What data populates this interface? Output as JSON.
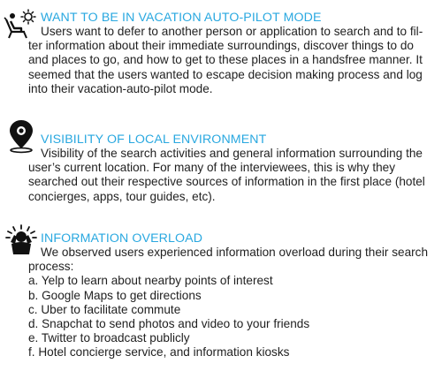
{
  "sections": [
    {
      "icon": "lounge-chair-sun-icon",
      "heading": "WANT TO BE IN VACATION AUTO-PILOT MODE",
      "lines": [
        "Users want to defer to another person or application to search and to fil-",
        "ter information about their immediate surroundings, discover things to do",
        "and places to go, and how to get to these places in a handsfree manner. It",
        "seemed that the users wanted to escape decision making process and log",
        "into their vacation-auto-pilot mode."
      ]
    },
    {
      "icon": "location-pin-icon",
      "heading": "VISIBILITY OF LOCAL ENVIRONMENT",
      "lines": [
        "Visibility of the search activities and general information surrounding the",
        "user’s current location. For many of the interviewees, this is why they",
        "searched out their respective sources of information in the first place (hotel",
        "concierges, apps, tour guides, etc)."
      ]
    },
    {
      "icon": "overloaded-person-icon",
      "heading": "INFORMATION OVERLOAD",
      "lines": [
        "We observed users experienced information overload during their search",
        "process:",
        "a. Yelp to learn about nearby points of interest",
        "b. Google Maps to get directions",
        "c. Uber to facilitate commute",
        "d. Snapchat to send photos and video to your friends",
        "e. Twitter to broadcast publicly",
        "f.  Hotel concierge service, and information kiosks"
      ]
    }
  ]
}
